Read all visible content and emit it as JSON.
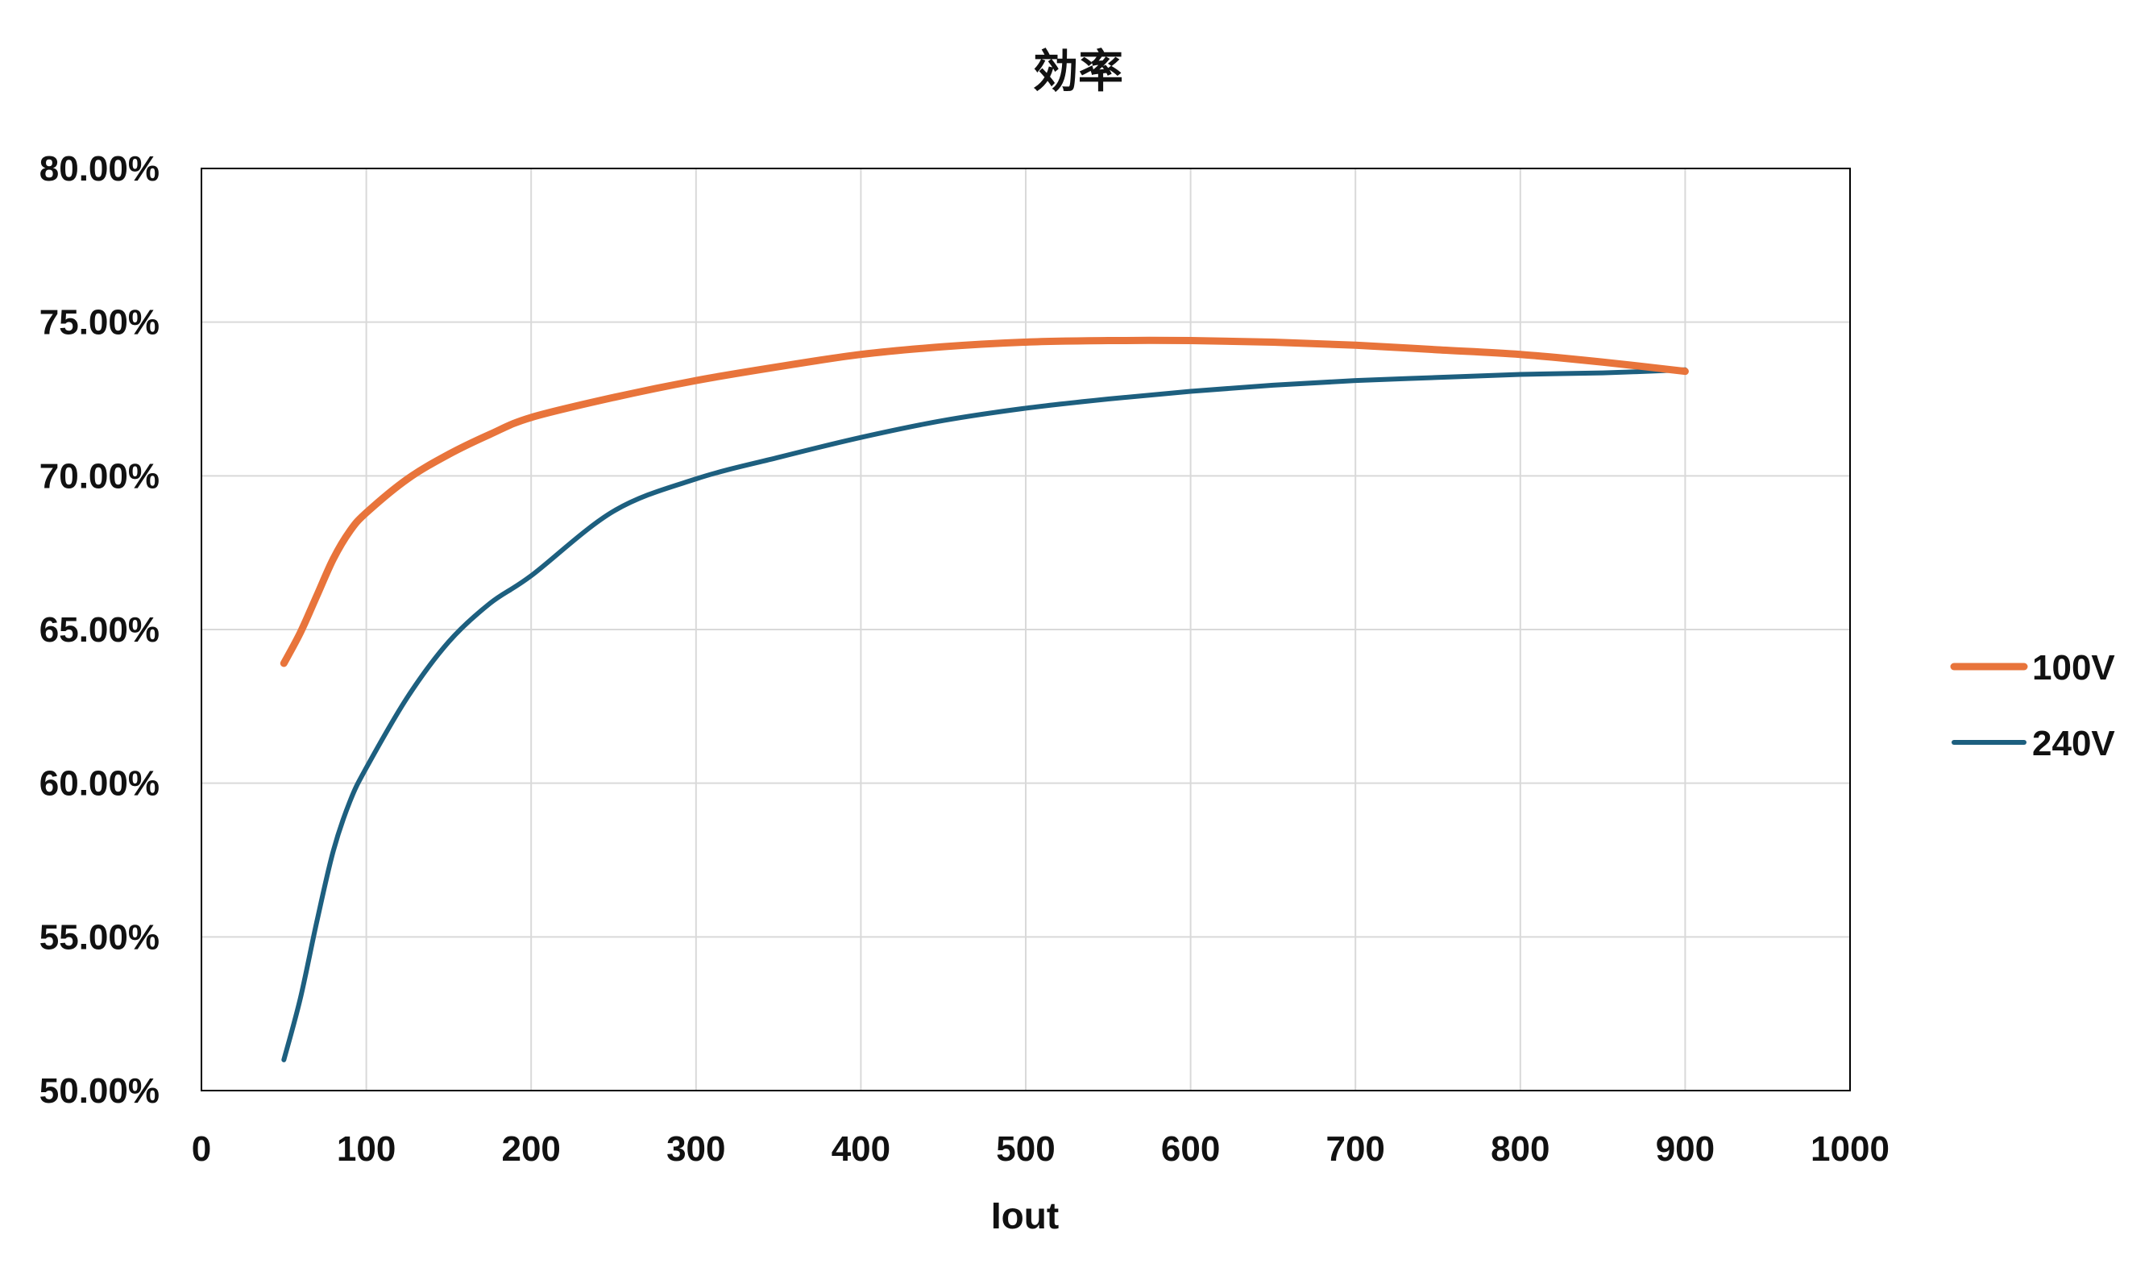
{
  "chart_data": {
    "type": "line",
    "title": "効率",
    "xlabel": "Iout",
    "ylabel": "",
    "xlim": [
      0,
      1000
    ],
    "ylim": [
      0.5,
      0.8
    ],
    "x_ticks": [
      0,
      100,
      200,
      300,
      400,
      500,
      600,
      700,
      800,
      900,
      1000
    ],
    "x_tick_labels": [
      "0",
      "100",
      "200",
      "300",
      "400",
      "500",
      "600",
      "700",
      "800",
      "900",
      "1000"
    ],
    "y_ticks": [
      0.5,
      0.55,
      0.6,
      0.65,
      0.7,
      0.75,
      0.8
    ],
    "y_tick_labels": [
      "50.00%",
      "55.00%",
      "60.00%",
      "65.00%",
      "70.00%",
      "75.00%",
      "80.00%"
    ],
    "grid": true,
    "legend_position": "right",
    "series": [
      {
        "name": "100V",
        "color": "#e8743b",
        "x": [
          50,
          60,
          70,
          80,
          90,
          100,
          125,
          150,
          175,
          200,
          250,
          300,
          350,
          400,
          450,
          500,
          550,
          600,
          650,
          700,
          750,
          800,
          850,
          900
        ],
        "y": [
          0.639,
          0.649,
          0.661,
          0.673,
          0.682,
          0.688,
          0.699,
          0.707,
          0.7135,
          0.719,
          0.7255,
          0.731,
          0.7355,
          0.7395,
          0.742,
          0.7435,
          0.744,
          0.744,
          0.7435,
          0.7425,
          0.741,
          0.7395,
          0.737,
          0.734
        ]
      },
      {
        "name": "240V",
        "color": "#1d5f7f",
        "x": [
          50,
          60,
          70,
          80,
          90,
          100,
          125,
          150,
          175,
          200,
          250,
          300,
          350,
          400,
          450,
          500,
          550,
          600,
          650,
          700,
          750,
          800,
          850,
          900
        ],
        "y": [
          0.51,
          0.53,
          0.555,
          0.578,
          0.594,
          0.605,
          0.628,
          0.646,
          0.6585,
          0.6675,
          0.6885,
          0.699,
          0.706,
          0.7125,
          0.718,
          0.722,
          0.725,
          0.7275,
          0.7295,
          0.731,
          0.732,
          0.733,
          0.7335,
          0.7345
        ]
      }
    ]
  }
}
